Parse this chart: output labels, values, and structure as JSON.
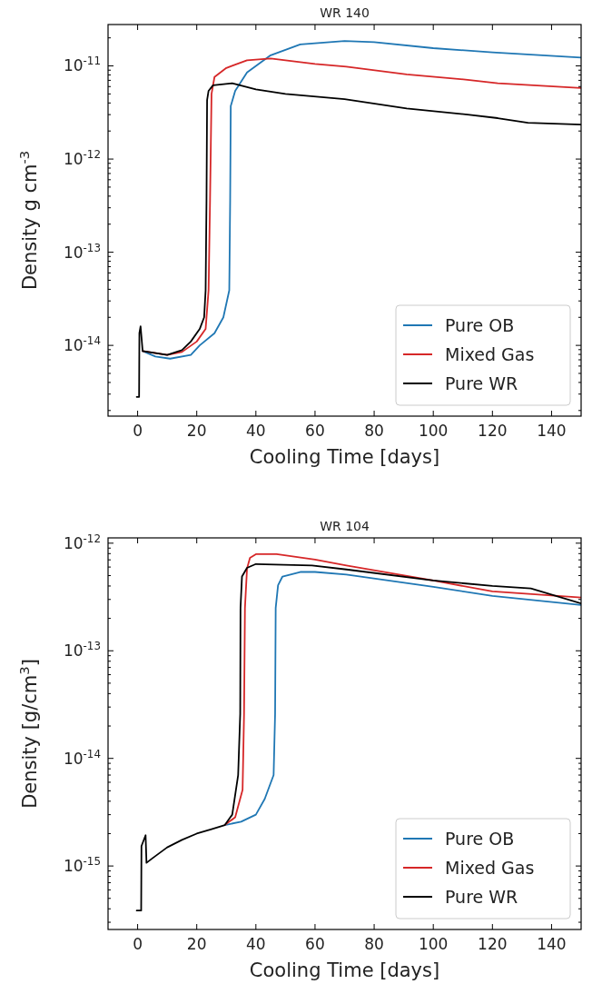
{
  "chart_data": [
    {
      "type": "line",
      "title": "WR 140",
      "xlabel": "Cooling Time [days]",
      "ylabel": "Density g cm$^{-3}$",
      "log": true,
      "xlim": [
        -10,
        150
      ],
      "xticks": [
        0,
        20,
        40,
        60,
        80,
        100,
        120,
        140
      ],
      "ylim": [
        1.74e-15,
        2.78e-11
      ],
      "yticks": [
        {
          "value": 2e-15,
          "label": null
        },
        {
          "value": 3e-15,
          "label": null
        },
        {
          "value": 4e-15,
          "label": null
        },
        {
          "value": 5e-15,
          "label": null
        },
        {
          "value": 6e-15,
          "label": null
        },
        {
          "value": 7e-15,
          "label": null
        },
        {
          "value": 8e-15,
          "label": null
        },
        {
          "value": 9e-15,
          "label": null
        },
        {
          "value": 1e-14,
          "label": "10$^{-14}$"
        },
        {
          "value": 2e-14,
          "label": null
        },
        {
          "value": 3e-14,
          "label": null
        },
        {
          "value": 4e-14,
          "label": null
        },
        {
          "value": 5e-14,
          "label": null
        },
        {
          "value": 6e-14,
          "label": null
        },
        {
          "value": 7e-14,
          "label": null
        },
        {
          "value": 8e-14,
          "label": null
        },
        {
          "value": 9e-14,
          "label": null
        },
        {
          "value": 1e-13,
          "label": "10$^{-13}$"
        },
        {
          "value": 2e-13,
          "label": null
        },
        {
          "value": 3e-13,
          "label": null
        },
        {
          "value": 4e-13,
          "label": null
        },
        {
          "value": 5e-13,
          "label": null
        },
        {
          "value": 6e-13,
          "label": null
        },
        {
          "value": 7e-13,
          "label": null
        },
        {
          "value": 8e-13,
          "label": null
        },
        {
          "value": 9e-13,
          "label": null
        },
        {
          "value": 1e-12,
          "label": "10$^{-12}$"
        },
        {
          "value": 2e-12,
          "label": null
        },
        {
          "value": 3e-12,
          "label": null
        },
        {
          "value": 4e-12,
          "label": null
        },
        {
          "value": 5e-12,
          "label": null
        },
        {
          "value": 6e-12,
          "label": null
        },
        {
          "value": 7e-12,
          "label": null
        },
        {
          "value": 8e-12,
          "label": null
        },
        {
          "value": 9e-12,
          "label": null
        },
        {
          "value": 1e-11,
          "label": "10$^{-11}$"
        },
        {
          "value": 2e-11,
          "label": null
        }
      ],
      "grid": false,
      "legend": "bottom right",
      "series": [
        {
          "name": "Pure OB",
          "color": "#1f77b4",
          "x": [
            1.7,
            6,
            11,
            18,
            21,
            26,
            29,
            31,
            31.3,
            31.5,
            33,
            37,
            45,
            55,
            70,
            80,
            100,
            120,
            150
          ],
          "values": [
            8.7e-15,
            7.6e-15,
            7.2e-15,
            7.9e-15,
            1e-14,
            1.35e-14,
            2e-14,
            3.9e-14,
            3.6e-13,
            3.7e-12,
            5.4e-12,
            8.5e-12,
            1.3e-11,
            1.7e-11,
            1.85e-11,
            1.8e-11,
            1.55e-11,
            1.4e-11,
            1.23e-11
          ]
        },
        {
          "name": "Mixed Gas",
          "color": "#d62728",
          "x": [
            1.7,
            10,
            15,
            20,
            23,
            24,
            24.5,
            25,
            26,
            30,
            37,
            45,
            60,
            70.6,
            91,
            111.6,
            121.8,
            150
          ],
          "values": [
            8.7e-15,
            7.9e-15,
            8.5e-15,
            1.1e-14,
            1.5e-14,
            3.9e-14,
            3.6e-13,
            5e-12,
            7.6e-12,
            9.5e-12,
            1.15e-11,
            1.2e-11,
            1.05e-11,
            9.8e-12,
            8.1e-12,
            7.1e-12,
            6.5e-12,
            5.8e-12
          ]
        },
        {
          "name": "Pure WR",
          "color": "#000000",
          "x": [
            -0.3,
            0.5,
            0.6,
            1.0,
            1.7,
            10,
            15,
            18,
            21,
            22.5,
            23,
            23.3,
            23.5,
            24,
            25.5,
            32,
            40,
            50,
            70,
            91,
            111.6,
            121.8,
            132,
            150
          ],
          "values": [
            2.8e-15,
            2.8e-15,
            1.35e-14,
            1.6e-14,
            8.7e-15,
            7.9e-15,
            8.9e-15,
            1.1e-14,
            1.5e-14,
            2e-14,
            3.9e-14,
            3.6e-13,
            4.3e-12,
            5.4e-12,
            6.2e-12,
            6.5e-12,
            5.6e-12,
            5e-12,
            4.4e-12,
            3.5e-12,
            3e-12,
            2.75e-12,
            2.45e-12,
            2.34e-12
          ]
        }
      ]
    },
    {
      "type": "line",
      "title": "WR 104",
      "xlabel": "Cooling Time [days]",
      "ylabel": "Density [g/cm$^{3}$]",
      "log": true,
      "xlim": [
        -10,
        150
      ],
      "xticks": [
        0,
        20,
        40,
        60,
        80,
        100,
        120,
        140
      ],
      "ylim": [
        2.57e-16,
        1.12e-12
      ],
      "yticks": [
        {
          "value": 3e-16,
          "label": null
        },
        {
          "value": 4e-16,
          "label": null
        },
        {
          "value": 5e-16,
          "label": null
        },
        {
          "value": 6e-16,
          "label": null
        },
        {
          "value": 7e-16,
          "label": null
        },
        {
          "value": 8e-16,
          "label": null
        },
        {
          "value": 9e-16,
          "label": null
        },
        {
          "value": 1e-15,
          "label": "10$^{-15}$"
        },
        {
          "value": 2e-15,
          "label": null
        },
        {
          "value": 3e-15,
          "label": null
        },
        {
          "value": 4e-15,
          "label": null
        },
        {
          "value": 5e-15,
          "label": null
        },
        {
          "value": 6e-15,
          "label": null
        },
        {
          "value": 7e-15,
          "label": null
        },
        {
          "value": 8e-15,
          "label": null
        },
        {
          "value": 9e-15,
          "label": null
        },
        {
          "value": 1e-14,
          "label": "10$^{-14}$"
        },
        {
          "value": 2e-14,
          "label": null
        },
        {
          "value": 3e-14,
          "label": null
        },
        {
          "value": 4e-14,
          "label": null
        },
        {
          "value": 5e-14,
          "label": null
        },
        {
          "value": 6e-14,
          "label": null
        },
        {
          "value": 7e-14,
          "label": null
        },
        {
          "value": 8e-14,
          "label": null
        },
        {
          "value": 9e-14,
          "label": null
        },
        {
          "value": 1e-13,
          "label": "10$^{-13}$"
        },
        {
          "value": 2e-13,
          "label": null
        },
        {
          "value": 3e-13,
          "label": null
        },
        {
          "value": 4e-13,
          "label": null
        },
        {
          "value": 5e-13,
          "label": null
        },
        {
          "value": 6e-13,
          "label": null
        },
        {
          "value": 7e-13,
          "label": null
        },
        {
          "value": 8e-13,
          "label": null
        },
        {
          "value": 9e-13,
          "label": null
        },
        {
          "value": 1e-12,
          "label": "10$^{-12}$"
        }
      ],
      "grid": false,
      "legend": "bottom right",
      "series": [
        {
          "name": "Pure OB",
          "color": "#1f77b4",
          "x": [
            29.5,
            35,
            40,
            43,
            46,
            46.5,
            46.7,
            47.5,
            49,
            55,
            60,
            70.6,
            100,
            120,
            150
          ],
          "values": [
            2.4e-15,
            2.58e-15,
            3e-15,
            4.2e-15,
            7e-15,
            2.6e-14,
            2.5e-13,
            4.06e-13,
            4.9e-13,
            5.4e-13,
            5.4e-13,
            5.1e-13,
            3.93e-13,
            3.24e-13,
            2.66e-13
          ]
        },
        {
          "name": "Mixed Gas",
          "color": "#d62728",
          "x": [
            29.5,
            33,
            35.5,
            36,
            36.3,
            37,
            38,
            40,
            47,
            60,
            70.6,
            100,
            120,
            150
          ],
          "values": [
            2.4e-15,
            2.84e-15,
            5.1e-15,
            2.6e-14,
            2.5e-13,
            5.8e-13,
            7.3e-13,
            7.9e-13,
            7.9e-13,
            7.05e-13,
            6.2e-13,
            4.5e-13,
            3.56e-13,
            3.13e-13
          ]
        },
        {
          "name": "Pure WR",
          "color": "#000000",
          "x": [
            -0.3,
            1.2,
            1.3,
            2.7,
            3.0,
            5,
            10,
            15,
            20,
            25,
            29.5,
            32,
            34,
            34.7,
            34.8,
            35.3,
            37,
            40,
            59,
            70.6,
            100,
            120,
            133,
            150
          ],
          "values": [
            3.85e-16,
            3.85e-16,
            1.53e-15,
            1.93e-15,
            1.07e-15,
            1.18e-15,
            1.49e-15,
            1.75e-15,
            2e-15,
            2.2e-15,
            2.4e-15,
            3e-15,
            7e-15,
            2.6e-14,
            2.5e-13,
            4.9e-13,
            5.9e-13,
            6.4e-13,
            6.2e-13,
            5.7e-13,
            4.5e-13,
            4e-13,
            3.8e-13,
            2.75e-13
          ]
        }
      ]
    }
  ]
}
